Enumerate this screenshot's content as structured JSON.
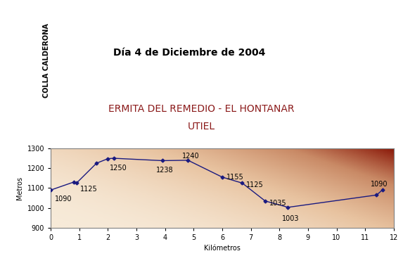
{
  "chart_data": {
    "type": "line",
    "title": "Día 4 de Diciembre de 2004",
    "subtitle": "ERMITA DEL REMEDIO - EL HONTANAR",
    "subtitle2": "UTIEL",
    "logo": "COLLA CALDERONA",
    "x_label": "Kilómetros",
    "y_label": "Metros",
    "x": [
      0,
      0.8,
      0.9,
      1.6,
      2.0,
      2.2,
      3.9,
      4.8,
      6.0,
      6.7,
      7.5,
      8.3,
      11.4,
      11.6
    ],
    "values": [
      1090,
      1130,
      1125,
      1225,
      1248,
      1250,
      1238,
      1240,
      1155,
      1125,
      1035,
      1003,
      1065,
      1090
    ],
    "value_labels": [
      "1090",
      null,
      "1125",
      null,
      null,
      "1250",
      "1238",
      "1240",
      "1155",
      "1125",
      "1035",
      "1003",
      null,
      "1090"
    ],
    "data_labels": true,
    "color": "#1a1a80",
    "marker": "diamond",
    "line_style": "solid",
    "xlim": [
      0,
      12
    ],
    "xticks": [
      0,
      1,
      2,
      3,
      4,
      5,
      6,
      7,
      8,
      9,
      10,
      11,
      12
    ],
    "ylim": [
      900,
      1300
    ],
    "yticks": [
      900,
      1000,
      1100,
      1200,
      1300
    ],
    "grid": false
  }
}
